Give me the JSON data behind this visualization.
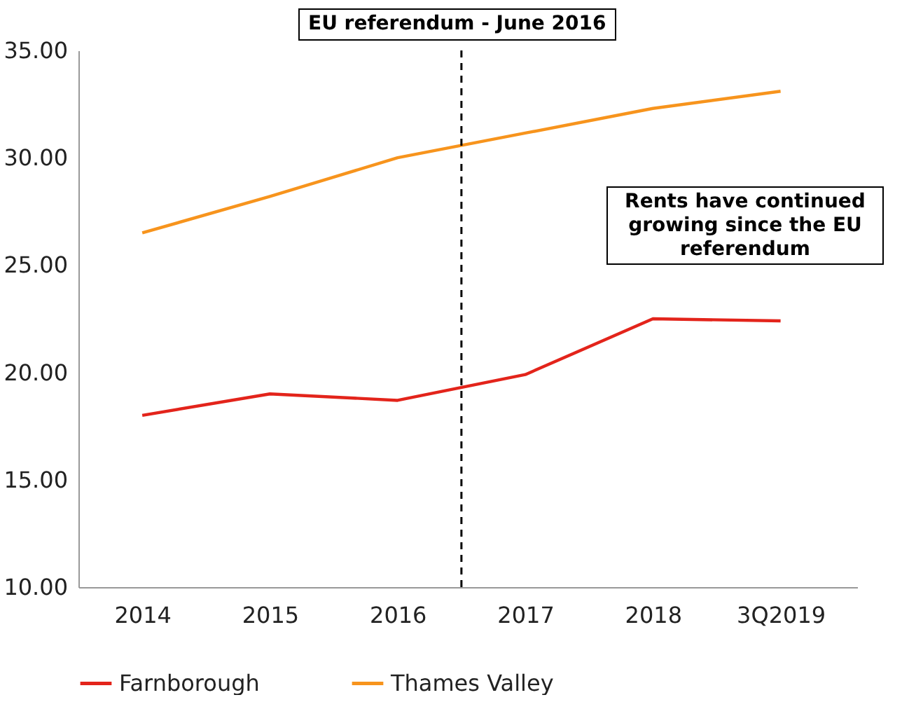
{
  "chart_data": {
    "type": "line",
    "x": [
      2014,
      2015,
      2016,
      2017,
      2018,
      2019
    ],
    "series": [
      {
        "name": "Farnborough",
        "color": "#e3241b",
        "values": [
          18.0,
          19.0,
          18.7,
          19.9,
          22.5,
          22.4
        ]
      },
      {
        "name": "Thames Valley",
        "color": "#f7941d",
        "values": [
          26.5,
          28.2,
          30.0,
          31.15,
          32.3,
          33.1
        ]
      }
    ],
    "xlim": [
      2013.5,
      2019.6
    ],
    "xticks": [
      2014,
      2015,
      2016,
      2017,
      2018,
      {
        "value": 2019,
        "label": "3Q2019"
      }
    ],
    "ylim": [
      10,
      35
    ],
    "yticks": [
      {
        "value": 10,
        "label": "10.00"
      },
      {
        "value": 15,
        "label": "15.00"
      },
      {
        "value": 20,
        "label": "20.00"
      },
      {
        "value": 25,
        "label": "25.00"
      },
      {
        "value": 30,
        "label": "30.00"
      },
      {
        "value": 35,
        "label": "35.00"
      }
    ],
    "ref_lines": [
      {
        "axis": "x",
        "value": 2016.5,
        "label": "EU referendum - June 2016",
        "line_style": "dashed"
      }
    ],
    "annotations": [
      "Rents have continued growing since the EU referendum"
    ],
    "legend": "bottom",
    "grid": false,
    "marker": "none"
  }
}
